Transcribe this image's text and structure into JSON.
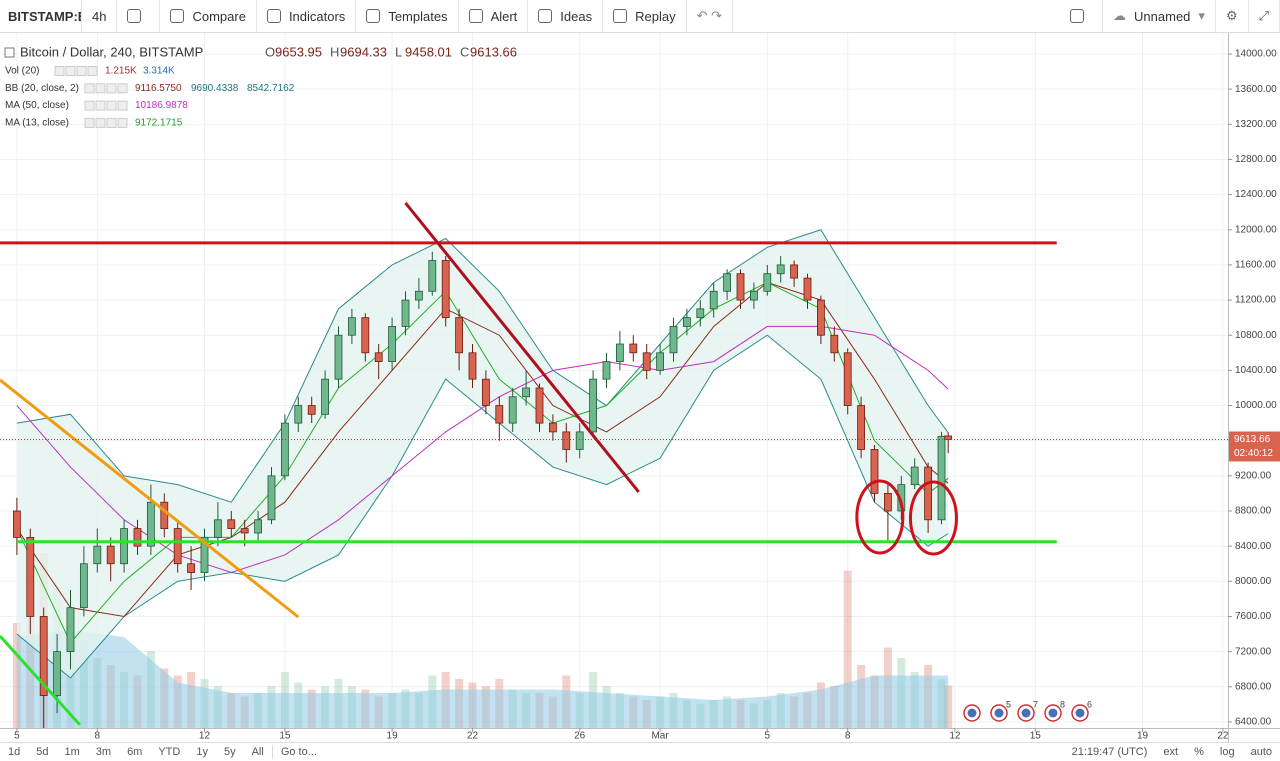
{
  "toolbar": {
    "symbol": "BITSTAMP:E",
    "interval": "4h",
    "buttons": [
      "Compare",
      "Indicators",
      "Templates",
      "Alert",
      "Ideas",
      "Replay"
    ],
    "layout_name": "Unnamed"
  },
  "bottom_bar": {
    "ranges": [
      "1d",
      "5d",
      "1m",
      "3m",
      "6m",
      "YTD",
      "1y",
      "5y",
      "All"
    ],
    "goto": "Go to...",
    "clock": "21:19:47 (UTC)",
    "options": [
      "ext",
      "%",
      "log",
      "auto"
    ]
  },
  "chart_data": {
    "type": "candlestick",
    "title": "Bitcoin / Dollar, 240, BITSTAMP",
    "ohlc_letters": [
      "O",
      "H",
      "L",
      "C"
    ],
    "indicators": [
      {
        "name": "Vol (20)",
        "values": [
          "1.215K",
          "3.314K"
        ],
        "colors": [
          "#a62a2a",
          "#1e6fa8"
        ]
      },
      {
        "name": "BB (20, close, 2)",
        "values": [
          "9116.5750",
          "9690.4338",
          "8542.7162"
        ],
        "colors": [
          "#8b2a1a",
          "#1b7c7c",
          "#1b7c7c"
        ]
      },
      {
        "name": "MA (50, close)",
        "values": [
          "10186.9878"
        ],
        "colors": [
          "#c02fc0"
        ]
      },
      {
        "name": "MA (13, close)",
        "values": [
          "9172.1715"
        ],
        "colors": [
          "#22a022"
        ]
      }
    ],
    "countdown": "02:40:12",
    "up_color": "#6fb88e",
    "down_color": "#d8644f",
    "candles": {
      "x": [
        0,
        0.5,
        1,
        1.5,
        2,
        2.5,
        3,
        3.5,
        4,
        4.5,
        5,
        5.5,
        6,
        6.5,
        7,
        7.5,
        8,
        8.5,
        9,
        9.5,
        10,
        10.5,
        11,
        11.5,
        12,
        12.5,
        13,
        13.5,
        14,
        14.5,
        15,
        15.5,
        16,
        16.5,
        17,
        17.5,
        18,
        18.5,
        19,
        19.5,
        20,
        20.5,
        21,
        21.5,
        22,
        22.5,
        23,
        23.5,
        24,
        24.5,
        25,
        25.5,
        26,
        26.5,
        27,
        27.5,
        28,
        28.5,
        29,
        29.5,
        30,
        30.5,
        31,
        31.5,
        32,
        32.5,
        33,
        33.5,
        34,
        34.5,
        34.75
      ],
      "open": [
        8800,
        8500,
        7600,
        6700,
        7200,
        7700,
        8200,
        8400,
        8200,
        8600,
        8400,
        8900,
        8600,
        8200,
        8100,
        8500,
        8700,
        8600,
        8550,
        8700,
        9200,
        9800,
        10000,
        9900,
        10300,
        10800,
        11000,
        10600,
        10500,
        10900,
        11200,
        11300,
        11650,
        11000,
        10600,
        10300,
        10000,
        9800,
        10100,
        10200,
        9800,
        9700,
        9500,
        9700,
        10300,
        10500,
        10700,
        10600,
        10400,
        10600,
        10900,
        11000,
        11100,
        11300,
        11500,
        11200,
        11300,
        11500,
        11600,
        11450,
        11200,
        10800,
        10600,
        10000,
        9500,
        9000,
        8800,
        9100,
        9300,
        8700,
        9653.95
      ],
      "high": [
        8950,
        8600,
        7700,
        7400,
        7900,
        8400,
        8600,
        8500,
        8700,
        8700,
        9100,
        9000,
        8700,
        8400,
        8600,
        8900,
        8800,
        8700,
        8800,
        9300,
        9900,
        10100,
        10100,
        10400,
        10900,
        11100,
        11050,
        10700,
        11000,
        11300,
        11450,
        11750,
        11700,
        11100,
        10700,
        10400,
        10100,
        10200,
        10400,
        10250,
        9900,
        9800,
        9800,
        10400,
        10600,
        10850,
        10800,
        10700,
        10700,
        11000,
        11100,
        11200,
        11400,
        11550,
        11550,
        11400,
        11600,
        11700,
        11650,
        11500,
        11250,
        10900,
        10650,
        10100,
        9550,
        9100,
        9200,
        9400,
        9350,
        9700,
        9694.33
      ],
      "low": [
        8300,
        7400,
        6000,
        6500,
        7000,
        7600,
        8100,
        8000,
        8100,
        8300,
        8300,
        8500,
        8100,
        7900,
        8000,
        8400,
        8500,
        8400,
        8450,
        8650,
        9150,
        9700,
        9800,
        9850,
        10200,
        10700,
        10500,
        10300,
        10400,
        10800,
        11100,
        11250,
        10900,
        10400,
        10200,
        9900,
        9600,
        9700,
        10000,
        9700,
        9600,
        9350,
        9400,
        9650,
        10200,
        10400,
        10500,
        10300,
        10350,
        10500,
        10800,
        10900,
        11000,
        11200,
        11100,
        11100,
        11250,
        11400,
        11350,
        11100,
        10700,
        10500,
        9900,
        9400,
        8900,
        8450,
        8700,
        9050,
        8550,
        8650,
        9458.01
      ],
      "close": [
        8500,
        7600,
        6700,
        7200,
        7700,
        8200,
        8400,
        8200,
        8600,
        8400,
        8900,
        8600,
        8200,
        8100,
        8500,
        8700,
        8600,
        8550,
        8700,
        9200,
        9800,
        10000,
        9900,
        10300,
        10800,
        11000,
        10600,
        10500,
        10900,
        11200,
        11300,
        11650,
        11000,
        10600,
        10300,
        10000,
        9800,
        10100,
        10200,
        9800,
        9700,
        9500,
        9700,
        10300,
        10500,
        10700,
        10600,
        10400,
        10600,
        10900,
        11000,
        11100,
        11300,
        11500,
        11200,
        11300,
        11500,
        11600,
        11450,
        11200,
        10800,
        10600,
        10000,
        9500,
        9000,
        8800,
        9100,
        9300,
        8700,
        9650,
        9613.66
      ],
      "volume": [
        3.0,
        4.5,
        5.0,
        4.0,
        3.0,
        2.5,
        2.0,
        1.8,
        1.6,
        1.5,
        2.2,
        1.7,
        1.5,
        1.6,
        1.4,
        1.2,
        1.0,
        0.9,
        1.0,
        1.2,
        1.6,
        1.3,
        1.1,
        1.2,
        1.4,
        1.2,
        1.1,
        0.9,
        1.0,
        1.1,
        1.0,
        1.5,
        1.6,
        1.4,
        1.3,
        1.2,
        1.4,
        1.1,
        1.0,
        1.0,
        0.9,
        1.5,
        1.0,
        1.6,
        1.2,
        1.0,
        0.9,
        0.8,
        0.9,
        1.0,
        0.8,
        0.7,
        0.8,
        0.9,
        0.8,
        0.7,
        0.8,
        1.0,
        0.9,
        1.0,
        1.3,
        1.2,
        4.5,
        1.8,
        1.5,
        2.3,
        2.0,
        1.6,
        1.8,
        1.4,
        1.215
      ]
    },
    "overlay_x": [
      0,
      2,
      4,
      6,
      8,
      10,
      12,
      14,
      16,
      18,
      20,
      22,
      24,
      26,
      28,
      30,
      32,
      34,
      34.75
    ],
    "band_fill": "#e3f3ef",
    "overlays": [
      {
        "color": "#2a8a8a",
        "values": [
          9800,
          9900,
          9200,
          9100,
          8900,
          9800,
          11100,
          11600,
          11900,
          11300,
          10400,
          10000,
          10700,
          11400,
          11800,
          12000,
          11000,
          10000,
          9690.4338
        ]
      },
      {
        "color": "#2a8a8a",
        "values": [
          7400,
          6900,
          7600,
          8000,
          8100,
          8000,
          8300,
          9200,
          10300,
          9800,
          9300,
          9100,
          9400,
          10400,
          10800,
          10300,
          8900,
          8400,
          8542.7162
        ]
      },
      {
        "color": "#8b2a1a",
        "values": [
          8600,
          7700,
          7600,
          8300,
          8500,
          8900,
          9700,
          10400,
          11100,
          10800,
          10000,
          9700,
          10100,
          10900,
          11400,
          11200,
          10300,
          9300,
          9116.575
        ]
      },
      {
        "color": "#c02fc0",
        "values": [
          10000,
          9300,
          8700,
          8300,
          8100,
          8300,
          8700,
          9200,
          9700,
          10100,
          10400,
          10500,
          10400,
          10500,
          10900,
          10900,
          10800,
          10400,
          10186.9878
        ]
      },
      {
        "color": "#22b022",
        "values": [
          8600,
          7300,
          8000,
          8500,
          8500,
          9200,
          10200,
          10700,
          11300,
          10300,
          9800,
          10000,
          10600,
          11100,
          11400,
          11100,
          9600,
          9000,
          9172.1715
        ]
      }
    ],
    "volume_ma": {
      "color": "#8fcbe6",
      "values": [
        2.6,
        2.8,
        2.6,
        1.3,
        1.0,
        1.0,
        1.0,
        1.0,
        1.1,
        1.1,
        1.1,
        1.0,
        0.9,
        0.8,
        0.9,
        1.1,
        1.5,
        1.5,
        1.5
      ]
    },
    "drawings": [
      {
        "color": "#d0101b",
        "x": [
          -0.63,
          38.8
        ],
        "y": [
          11850,
          11850
        ]
      },
      {
        "color": "#2ee02e",
        "x": [
          0,
          38.8
        ],
        "y": [
          8450,
          8450
        ]
      },
      {
        "color": "#b0101b",
        "x": [
          14.5,
          23.2
        ],
        "y": [
          12305,
          9017
        ]
      },
      {
        "color": "#f29c12",
        "x": [
          -0.63,
          10.5
        ],
        "y": [
          10291,
          7594
        ]
      },
      {
        "color": "#2ee02e",
        "x": [
          -0.63,
          2.35
        ],
        "y": [
          7378,
          6366
        ]
      }
    ],
    "ellipses": [
      {
        "color": "#d0101b",
        "x": 32.2,
        "y": 8732
      },
      {
        "color": "#d0101b",
        "x": 34.2,
        "y": 8721
      }
    ],
    "event_counts": [
      "5",
      "7",
      "8",
      "6"
    ],
    "xlim": [
      -0.63,
      45.19
    ],
    "ylim": [
      6331,
      14159
    ],
    "xticks": [
      {
        "value": 0,
        "label": "5"
      },
      {
        "value": 3,
        "label": "8"
      },
      {
        "value": 7,
        "label": "12"
      },
      {
        "value": 10,
        "label": "15"
      },
      {
        "value": 14,
        "label": "19"
      },
      {
        "value": 17,
        "label": "22"
      },
      {
        "value": 21,
        "label": "26"
      },
      {
        "value": 24,
        "label": "Mar"
      },
      {
        "value": 28,
        "label": "5"
      },
      {
        "value": 31,
        "label": "8"
      },
      {
        "value": 35,
        "label": "12"
      },
      {
        "value": 38,
        "label": "15"
      },
      {
        "value": 42,
        "label": "19"
      },
      {
        "value": 45,
        "label": "22"
      }
    ],
    "yticks": [
      {
        "value": 6400,
        "label": "6400.00"
      },
      {
        "value": 6800,
        "label": "6800.00"
      },
      {
        "value": 7200,
        "label": "7200.00"
      },
      {
        "value": 7600,
        "label": "7600.00"
      },
      {
        "value": 8000,
        "label": "8000.00"
      },
      {
        "value": 8400,
        "label": "8400.00"
      },
      {
        "value": 8800,
        "label": "8800.00"
      },
      {
        "value": 9200,
        "label": "9200.00"
      },
      {
        "value": 9600,
        "label": "9600.00"
      },
      {
        "value": 10000,
        "label": "10000.00"
      },
      {
        "value": 10400,
        "label": "10400.00"
      },
      {
        "value": 10800,
        "label": "10800.00"
      },
      {
        "value": 11200,
        "label": "11200.00"
      },
      {
        "value": 11600,
        "label": "11600.00"
      },
      {
        "value": 12000,
        "label": "12000.00"
      },
      {
        "value": 12400,
        "label": "12400.00"
      },
      {
        "value": 12800,
        "label": "12800.00"
      },
      {
        "value": 13200,
        "label": "13200.00"
      },
      {
        "value": 13600,
        "label": "13600.00"
      },
      {
        "value": 14000,
        "label": "14000.00"
      }
    ],
    "grid": true
  }
}
